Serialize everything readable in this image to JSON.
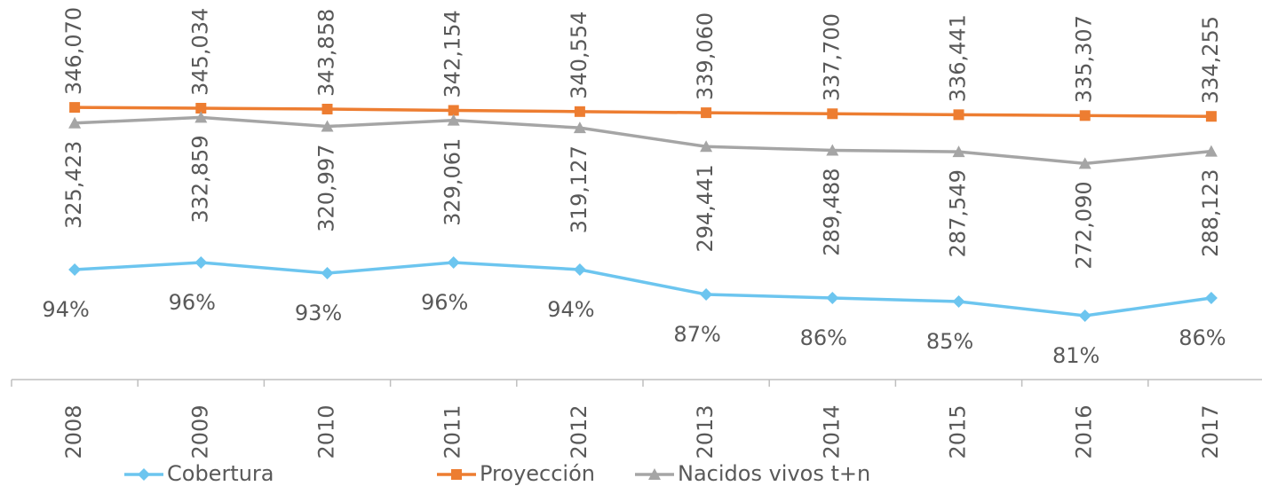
{
  "chart_data": {
    "type": "line",
    "categories": [
      "2008",
      "2009",
      "2010",
      "2011",
      "2012",
      "2013",
      "2014",
      "2015",
      "2016",
      "2017"
    ],
    "series": [
      {
        "name": "Cobertura",
        "color": "#6cc5ef",
        "marker": "diamond",
        "axis": "y2",
        "values": [
          94,
          96,
          93,
          96,
          94,
          87,
          86,
          85,
          81,
          86
        ],
        "value_labels": [
          "94%",
          "96%",
          "93%",
          "96%",
          "94%",
          "87%",
          "86%",
          "85%",
          "81%",
          "86%"
        ]
      },
      {
        "name": "Proyección",
        "color": "#ed7d31",
        "marker": "square",
        "values": [
          346070,
          345034,
          343858,
          342154,
          340554,
          339060,
          337700,
          336441,
          335307,
          334255
        ],
        "value_labels": [
          "346,070",
          "345,034",
          "343,858",
          "342,154",
          "340,554",
          "339,060",
          "337,700",
          "336,441",
          "335,307",
          "334,255"
        ]
      },
      {
        "name": "Nacidos vivos t+n",
        "color": "#a5a5a5",
        "marker": "triangle",
        "values": [
          325423,
          332859,
          320997,
          329061,
          319127,
          294441,
          289488,
          287549,
          272090,
          288123
        ],
        "value_labels": [
          "325,423",
          "332,859",
          "320,997",
          "329,061",
          "319,127",
          "294,441",
          "289,488",
          "287,549",
          "272,090",
          "288,123"
        ]
      }
    ],
    "ylim": [
      0,
      400000
    ],
    "y2lim": [
      80,
      100
    ],
    "grid": false,
    "legend": "bottom"
  }
}
